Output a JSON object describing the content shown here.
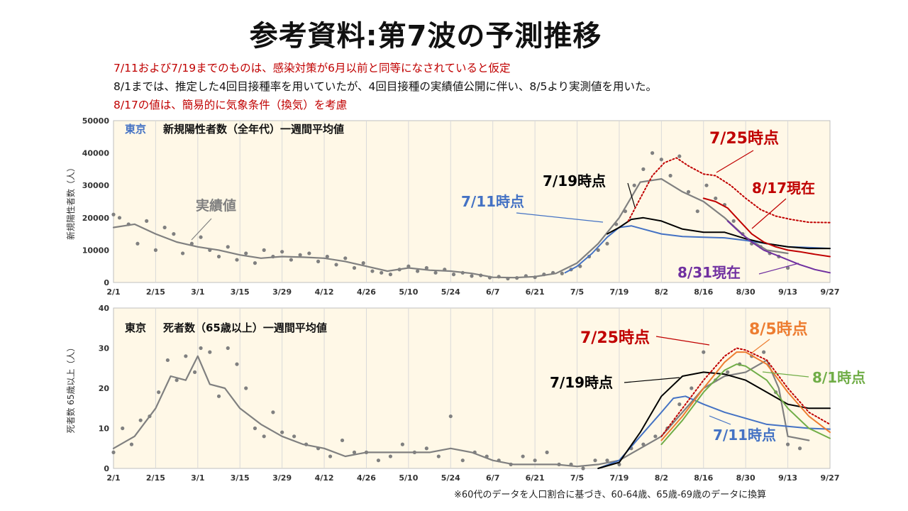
{
  "page": {
    "title": "参考資料:第7波の予測推移",
    "notes": [
      {
        "text": "7/11および7/19までのものは、感染対策が6月以前と同等になされていると仮定",
        "color": "red"
      },
      {
        "text": "8/1までは、推定した4回目接種率を用いていたが、4回目接種の実績値公開に伴い、8/5より実測値を用いた。",
        "color": "black"
      },
      {
        "text": "8/17の値は、簡易的に気象条件（換気）を考慮",
        "color": "red"
      }
    ],
    "footnote": "※60代のデータを人口割合に基づき、60-64歳、65歳-69歳のデータに換算"
  },
  "colors": {
    "actual": "#808080",
    "black": "#000000",
    "blue": "#4472c4",
    "red": "#c00000",
    "purple": "#7030a0",
    "orange": "#ed7d31",
    "green": "#70ad47",
    "plot_bg": "#fff8e7"
  },
  "chart_data": [
    {
      "type": "line",
      "title_prefix": "東京",
      "title": "新規陽性者数（全年代）一週間平均値",
      "ylabel": "新規陽性者数（人）",
      "ylim": [
        0,
        50000
      ],
      "yticks": [
        "0",
        "10000",
        "20000",
        "30000",
        "40000",
        "50000"
      ],
      "x_range": [
        "2/1",
        "9/27"
      ],
      "xticks": [
        "2/1",
        "2/15",
        "3/1",
        "3/15",
        "3/29",
        "4/12",
        "4/26",
        "5/10",
        "5/24",
        "6/7",
        "6/21",
        "7/5",
        "7/19",
        "8/2",
        "8/16",
        "8/30",
        "9/13",
        "9/27"
      ],
      "series": [
        {
          "name": "実績値",
          "style": "actual_avg",
          "x": [
            "2/1",
            "2/8",
            "2/15",
            "2/22",
            "3/1",
            "3/8",
            "3/15",
            "3/22",
            "3/29",
            "4/5",
            "4/12",
            "4/19",
            "4/26",
            "5/3",
            "5/10",
            "5/17",
            "5/24",
            "5/31",
            "6/7",
            "6/14",
            "6/21",
            "6/28",
            "7/5",
            "7/12",
            "7/19",
            "7/26",
            "8/2",
            "8/9",
            "8/16",
            "8/23",
            "8/30",
            "9/6",
            "9/13"
          ],
          "values": [
            17000,
            18000,
            15000,
            12500,
            11000,
            10000,
            8500,
            7500,
            8000,
            7800,
            7500,
            6500,
            5000,
            3500,
            4500,
            3800,
            3500,
            2800,
            1600,
            1500,
            1800,
            2800,
            6000,
            12000,
            20000,
            31000,
            32000,
            28000,
            25000,
            20000,
            14000,
            10000,
            9000
          ]
        },
        {
          "name": "実績値(日次)",
          "style": "actual_dots",
          "x": [
            "2/1",
            "2/3",
            "2/6",
            "2/9",
            "2/12",
            "2/15",
            "2/18",
            "2/21",
            "2/24",
            "2/27",
            "3/2",
            "3/5",
            "3/8",
            "3/11",
            "3/14",
            "3/17",
            "3/20",
            "3/23",
            "3/26",
            "3/29",
            "4/1",
            "4/4",
            "4/7",
            "4/10",
            "4/13",
            "4/16",
            "4/19",
            "4/22",
            "4/25",
            "4/28",
            "5/1",
            "5/4",
            "5/7",
            "5/10",
            "5/13",
            "5/16",
            "5/19",
            "5/22",
            "5/25",
            "5/28",
            "5/31",
            "6/3",
            "6/6",
            "6/9",
            "6/12",
            "6/15",
            "6/18",
            "6/21",
            "6/24",
            "6/27",
            "6/30",
            "7/3",
            "7/6",
            "7/9",
            "7/12",
            "7/15",
            "7/18",
            "7/21",
            "7/24",
            "7/27",
            "7/30",
            "8/2",
            "8/5",
            "8/8",
            "8/11",
            "8/14",
            "8/17",
            "8/20",
            "8/23",
            "8/26",
            "8/29",
            "9/1",
            "9/4",
            "9/7",
            "9/10",
            "9/13"
          ],
          "values": [
            21000,
            20000,
            18000,
            12000,
            19000,
            10000,
            17000,
            15000,
            9000,
            12000,
            14000,
            10000,
            8000,
            11000,
            7000,
            9000,
            6000,
            10000,
            8000,
            9500,
            7000,
            8500,
            9000,
            6500,
            8000,
            5500,
            7500,
            4500,
            6000,
            3500,
            3000,
            2500,
            4000,
            5000,
            3500,
            4500,
            3000,
            4000,
            2500,
            3000,
            2000,
            2200,
            1500,
            1800,
            1200,
            1400,
            2000,
            1600,
            2500,
            3000,
            2800,
            4000,
            5000,
            8000,
            10000,
            12000,
            18000,
            22000,
            30000,
            35000,
            40000,
            38000,
            33000,
            39000,
            28000,
            22000,
            30000,
            26000,
            24000,
            19000,
            15000,
            12000,
            11000,
            9000,
            8000,
            4500
          ]
        },
        {
          "name": "7/11時点",
          "color_key": "blue",
          "dash": false,
          "x": [
            "7/1",
            "7/5",
            "7/10",
            "7/15",
            "7/19",
            "7/23",
            "7/27",
            "8/2",
            "8/9",
            "8/16",
            "8/23",
            "8/30",
            "9/6",
            "9/13",
            "9/20",
            "9/27"
          ],
          "values": [
            3000,
            5000,
            9000,
            14000,
            17000,
            17500,
            16500,
            15000,
            14200,
            14000,
            13800,
            13000,
            12000,
            11000,
            10800,
            10500
          ]
        },
        {
          "name": "7/19時点",
          "color_key": "black",
          "dash": false,
          "x": [
            "7/15",
            "7/19",
            "7/23",
            "7/27",
            "8/2",
            "8/9",
            "8/16",
            "8/23",
            "8/30",
            "9/6",
            "9/13",
            "9/20",
            "9/27"
          ],
          "values": [
            15000,
            17000,
            19500,
            20000,
            19000,
            16500,
            15500,
            15500,
            13500,
            12000,
            11000,
            10500,
            10500
          ]
        },
        {
          "name": "7/25時点",
          "color_key": "red",
          "dash": true,
          "x": [
            "7/22",
            "7/26",
            "7/30",
            "8/3",
            "8/7",
            "8/11",
            "8/16",
            "8/20",
            "8/25",
            "8/30",
            "9/4",
            "9/9",
            "9/14",
            "9/20",
            "9/27"
          ],
          "values": [
            19000,
            26000,
            33000,
            37000,
            38500,
            36000,
            33500,
            33000,
            30000,
            26000,
            22500,
            20500,
            19500,
            18600,
            18500
          ]
        },
        {
          "name": "8/17現在",
          "color_key": "red",
          "dash": false,
          "x": [
            "8/16",
            "8/20",
            "8/24",
            "8/28",
            "9/1",
            "9/5",
            "9/9",
            "9/13",
            "9/17",
            "9/22",
            "9/27"
          ],
          "values": [
            26000,
            25000,
            23000,
            19000,
            15000,
            12500,
            11000,
            10000,
            9500,
            8700,
            8000
          ]
        },
        {
          "name": "8/31現在",
          "color_key": "purple",
          "dash": false,
          "x": [
            "8/24",
            "8/28",
            "9/1",
            "9/5",
            "9/9",
            "9/13",
            "9/17",
            "9/22",
            "9/27"
          ],
          "values": [
            19000,
            15500,
            12500,
            10000,
            8500,
            7000,
            5500,
            4000,
            3000
          ]
        }
      ],
      "annotations": [
        {
          "text": "7/25時点",
          "color_key": "red"
        },
        {
          "text": "7/19時点",
          "color_key": "black"
        },
        {
          "text": "8/17現在",
          "color_key": "red"
        },
        {
          "text": "7/11時点",
          "color_key": "blue"
        },
        {
          "text": "実績値",
          "color_key": "actual"
        },
        {
          "text": "8/31現在",
          "color_key": "purple"
        }
      ]
    },
    {
      "type": "line",
      "title_prefix": "東京",
      "title": "死者数（65歳以上）一週間平均値",
      "ylabel": "死者数 65歳以上（人）",
      "ylim": [
        0,
        40
      ],
      "yticks": [
        "0",
        "10",
        "20",
        "30",
        "40"
      ],
      "x_range": [
        "2/1",
        "9/27"
      ],
      "xticks": [
        "2/1",
        "2/15",
        "3/1",
        "3/15",
        "3/29",
        "4/12",
        "4/26",
        "5/10",
        "5/24",
        "6/7",
        "6/21",
        "7/5",
        "7/19",
        "8/2",
        "8/16",
        "8/30",
        "9/13",
        "9/27"
      ],
      "series": [
        {
          "name": "実績値",
          "style": "actual_avg",
          "x": [
            "2/1",
            "2/8",
            "2/15",
            "2/20",
            "2/25",
            "3/1",
            "3/5",
            "3/10",
            "3/15",
            "3/22",
            "3/29",
            "4/5",
            "4/12",
            "4/19",
            "4/26",
            "5/3",
            "5/10",
            "5/17",
            "5/24",
            "5/31",
            "6/7",
            "6/14",
            "6/21",
            "6/28",
            "7/5",
            "7/12",
            "7/19",
            "7/26",
            "8/2",
            "8/9",
            "8/16",
            "8/23",
            "8/30",
            "9/6",
            "9/10",
            "9/13",
            "9/20"
          ],
          "values": [
            5,
            8,
            15,
            23,
            22,
            28,
            21,
            20,
            15,
            11,
            8,
            6,
            5,
            3,
            4,
            4,
            4,
            4,
            5,
            4,
            2,
            1,
            1,
            1,
            0.5,
            1,
            2,
            5,
            8,
            14,
            20,
            23,
            24,
            27,
            20,
            8,
            7
          ]
        },
        {
          "name": "実績値(日次)",
          "style": "actual_dots",
          "x": [
            "2/1",
            "2/4",
            "2/7",
            "2/10",
            "2/13",
            "2/16",
            "2/19",
            "2/22",
            "2/25",
            "2/28",
            "3/2",
            "3/5",
            "3/8",
            "3/11",
            "3/14",
            "3/17",
            "3/20",
            "3/23",
            "3/26",
            "3/29",
            "4/2",
            "4/6",
            "4/10",
            "4/14",
            "4/18",
            "4/22",
            "4/26",
            "4/30",
            "5/4",
            "5/8",
            "5/12",
            "5/16",
            "5/20",
            "5/24",
            "5/28",
            "6/1",
            "6/5",
            "6/9",
            "6/13",
            "6/17",
            "6/21",
            "6/25",
            "6/29",
            "7/3",
            "7/7",
            "7/11",
            "7/15",
            "7/19",
            "7/23",
            "7/27",
            "7/31",
            "8/4",
            "8/8",
            "8/12",
            "8/16",
            "8/20",
            "8/24",
            "8/28",
            "9/1",
            "9/5",
            "9/9",
            "9/13",
            "9/17"
          ],
          "values": [
            4,
            10,
            6,
            12,
            13,
            19,
            27,
            22,
            28,
            24,
            30,
            29,
            18,
            30,
            26,
            20,
            10,
            8,
            14,
            9,
            8,
            6,
            5,
            3,
            7,
            4,
            4,
            2,
            3,
            6,
            4,
            5,
            3,
            13,
            2,
            4,
            3,
            2,
            1,
            3,
            2,
            4,
            1,
            1,
            0,
            2,
            2,
            1,
            5,
            6,
            8,
            10,
            16,
            20,
            29,
            22,
            24,
            26,
            28,
            29,
            19,
            6,
            5
          ]
        },
        {
          "name": "7/11時点",
          "color_key": "blue",
          "dash": false,
          "x": [
            "7/12",
            "7/19",
            "7/26",
            "8/2",
            "8/6",
            "8/10",
            "8/16",
            "8/23",
            "8/30",
            "9/6",
            "9/13",
            "9/20",
            "9/27"
          ],
          "values": [
            0,
            2,
            8,
            14,
            17.5,
            18,
            16,
            14,
            12.5,
            11,
            10.5,
            10,
            9.8
          ]
        },
        {
          "name": "7/19時点",
          "color_key": "black",
          "dash": false,
          "x": [
            "7/12",
            "7/19",
            "7/26",
            "8/2",
            "8/9",
            "8/16",
            "8/23",
            "8/30",
            "9/6",
            "9/13",
            "9/20",
            "9/27"
          ],
          "values": [
            0,
            1.5,
            9,
            18,
            23,
            24,
            23.5,
            22,
            19,
            16,
            15,
            15
          ]
        },
        {
          "name": "7/25時点",
          "color_key": "red",
          "dash": true,
          "x": [
            "8/2",
            "8/9",
            "8/16",
            "8/23",
            "8/27",
            "8/30",
            "9/6",
            "9/13",
            "9/20",
            "9/27"
          ],
          "values": [
            8,
            15,
            22,
            28,
            30,
            29.5,
            27,
            20,
            14,
            11
          ]
        },
        {
          "name": "8/5時点",
          "color_key": "orange",
          "dash": false,
          "x": [
            "8/2",
            "8/9",
            "8/16",
            "8/23",
            "8/27",
            "8/30",
            "9/6",
            "9/13",
            "9/20",
            "9/27"
          ],
          "values": [
            7,
            13,
            20,
            26.5,
            29,
            29,
            26,
            19,
            13,
            9
          ]
        },
        {
          "name": "8/1時点",
          "color_key": "green",
          "dash": false,
          "x": [
            "8/2",
            "8/9",
            "8/16",
            "8/23",
            "8/27",
            "8/30",
            "9/6",
            "9/13",
            "9/20",
            "9/27"
          ],
          "values": [
            6,
            12,
            19,
            24.5,
            26,
            25.5,
            22,
            15,
            10,
            7.5
          ]
        }
      ],
      "annotations": [
        {
          "text": "7/25時点",
          "color_key": "red"
        },
        {
          "text": "8/5時点",
          "color_key": "orange"
        },
        {
          "text": "7/19時点",
          "color_key": "black"
        },
        {
          "text": "8/1時点",
          "color_key": "green"
        },
        {
          "text": "7/11時点",
          "color_key": "blue"
        }
      ]
    }
  ]
}
